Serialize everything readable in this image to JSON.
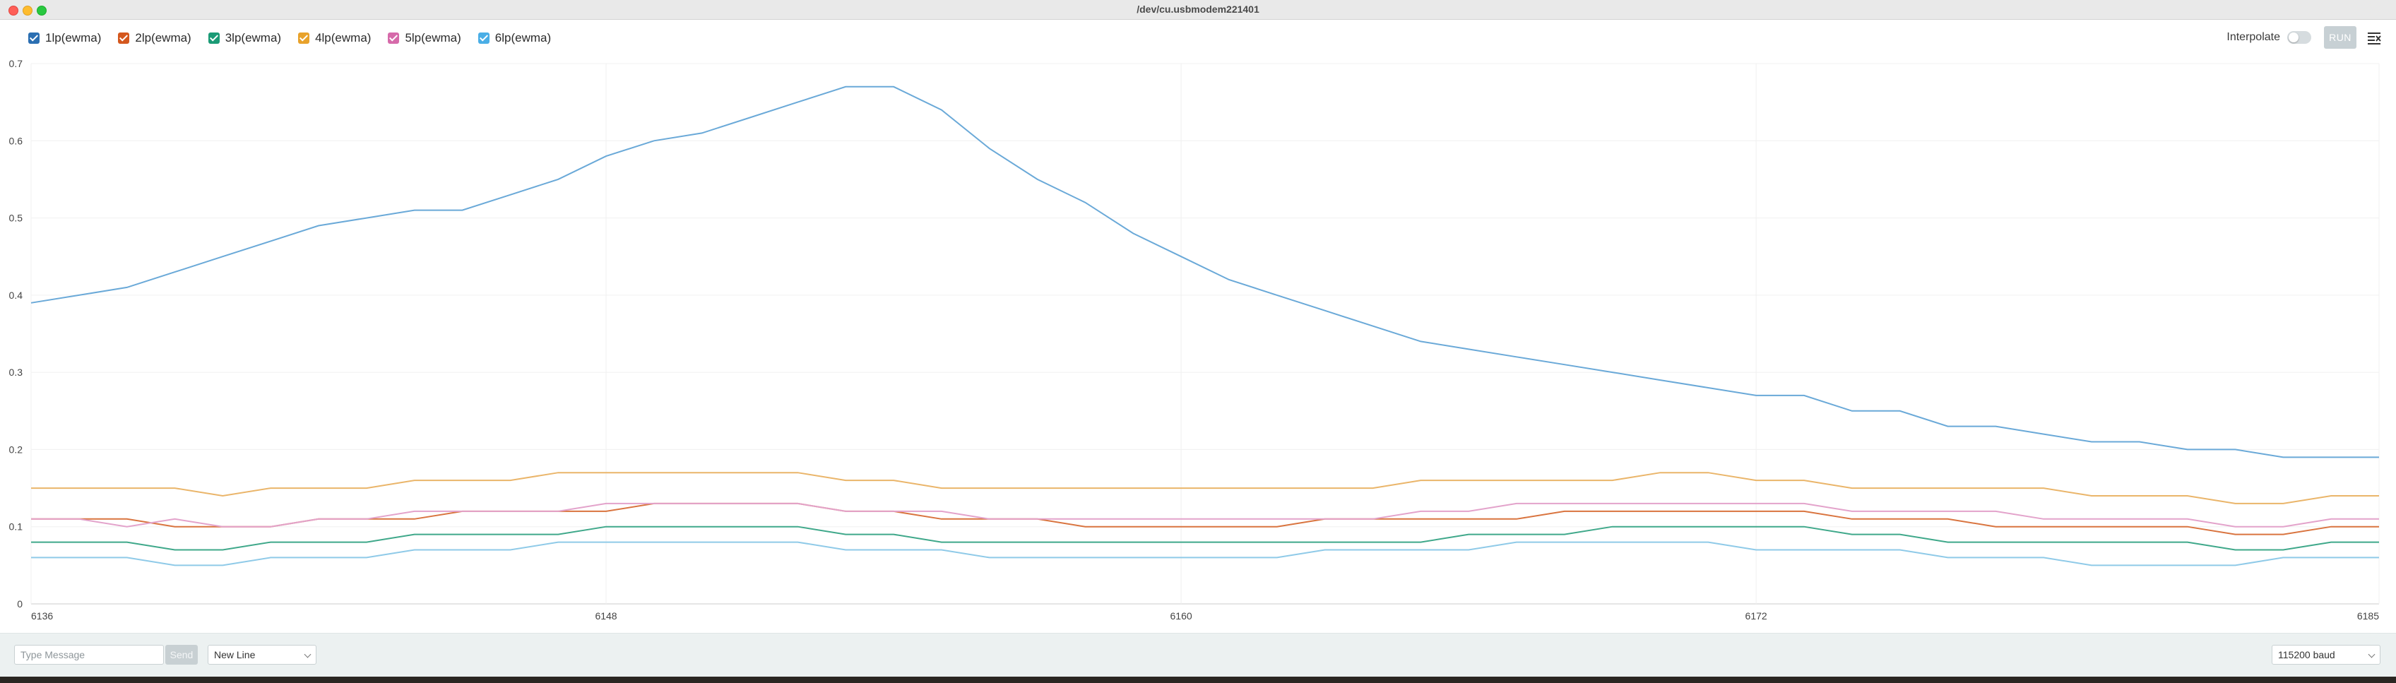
{
  "window": {
    "title": "/dev/cu.usbmodem221401"
  },
  "legend": {
    "items": [
      {
        "label": "1lp(ewma)",
        "color": "#2b6fb2"
      },
      {
        "label": "2lp(ewma)",
        "color": "#d4581e"
      },
      {
        "label": "3lp(ewma)",
        "color": "#1b9b76"
      },
      {
        "label": "4lp(ewma)",
        "color": "#e8a22b"
      },
      {
        "label": "5lp(ewma)",
        "color": "#d66aaa"
      },
      {
        "label": "6lp(ewma)",
        "color": "#4aaee6"
      }
    ]
  },
  "toolbar": {
    "interpolate_label": "Interpolate",
    "interpolate_on": false,
    "run_label": "RUN",
    "clear_icon": "clear-output-icon"
  },
  "chart_data": {
    "type": "line",
    "x": [
      6136,
      6137,
      6138,
      6139,
      6140,
      6141,
      6142,
      6143,
      6144,
      6145,
      6146,
      6147,
      6148,
      6149,
      6150,
      6151,
      6152,
      6153,
      6154,
      6155,
      6156,
      6157,
      6158,
      6159,
      6160,
      6161,
      6162,
      6163,
      6164,
      6165,
      6166,
      6167,
      6168,
      6169,
      6170,
      6171,
      6172,
      6173,
      6174,
      6175,
      6176,
      6177,
      6178,
      6179,
      6180,
      6181,
      6182,
      6183,
      6184,
      6185
    ],
    "xticks": [
      6136,
      6148,
      6160,
      6172,
      6185
    ],
    "yticks": [
      0,
      0.1,
      0.2,
      0.3,
      0.4,
      0.5,
      0.6,
      0.7
    ],
    "xlim": [
      6136,
      6185
    ],
    "ylim": [
      0,
      0.7
    ],
    "grid": true,
    "series": [
      {
        "name": "1lp(ewma)",
        "color": "#6aa9d8",
        "values": [
          0.39,
          0.4,
          0.41,
          0.43,
          0.45,
          0.47,
          0.49,
          0.5,
          0.51,
          0.51,
          0.53,
          0.55,
          0.58,
          0.6,
          0.61,
          0.63,
          0.65,
          0.67,
          0.67,
          0.64,
          0.59,
          0.55,
          0.52,
          0.48,
          0.45,
          0.42,
          0.4,
          0.38,
          0.36,
          0.34,
          0.33,
          0.32,
          0.31,
          0.3,
          0.29,
          0.28,
          0.27,
          0.27,
          0.25,
          0.25,
          0.23,
          0.23,
          0.22,
          0.21,
          0.21,
          0.2,
          0.2,
          0.19,
          0.19,
          0.19
        ]
      },
      {
        "name": "2lp(ewma)",
        "color": "#d9743f",
        "values": [
          0.11,
          0.11,
          0.11,
          0.1,
          0.1,
          0.1,
          0.11,
          0.11,
          0.11,
          0.12,
          0.12,
          0.12,
          0.12,
          0.13,
          0.13,
          0.13,
          0.13,
          0.12,
          0.12,
          0.11,
          0.11,
          0.11,
          0.1,
          0.1,
          0.1,
          0.1,
          0.1,
          0.11,
          0.11,
          0.11,
          0.11,
          0.11,
          0.12,
          0.12,
          0.12,
          0.12,
          0.12,
          0.12,
          0.11,
          0.11,
          0.11,
          0.1,
          0.1,
          0.1,
          0.1,
          0.1,
          0.09,
          0.09,
          0.1,
          0.1
        ]
      },
      {
        "name": "3lp(ewma)",
        "color": "#3fa88a",
        "values": [
          0.08,
          0.08,
          0.08,
          0.07,
          0.07,
          0.08,
          0.08,
          0.08,
          0.09,
          0.09,
          0.09,
          0.09,
          0.1,
          0.1,
          0.1,
          0.1,
          0.1,
          0.09,
          0.09,
          0.08,
          0.08,
          0.08,
          0.08,
          0.08,
          0.08,
          0.08,
          0.08,
          0.08,
          0.08,
          0.08,
          0.09,
          0.09,
          0.09,
          0.1,
          0.1,
          0.1,
          0.1,
          0.1,
          0.09,
          0.09,
          0.08,
          0.08,
          0.08,
          0.08,
          0.08,
          0.08,
          0.07,
          0.07,
          0.08,
          0.08
        ]
      },
      {
        "name": "4lp(ewma)",
        "color": "#eab56a",
        "values": [
          0.15,
          0.15,
          0.15,
          0.15,
          0.14,
          0.15,
          0.15,
          0.15,
          0.16,
          0.16,
          0.16,
          0.17,
          0.17,
          0.17,
          0.17,
          0.17,
          0.17,
          0.16,
          0.16,
          0.15,
          0.15,
          0.15,
          0.15,
          0.15,
          0.15,
          0.15,
          0.15,
          0.15,
          0.15,
          0.16,
          0.16,
          0.16,
          0.16,
          0.16,
          0.17,
          0.17,
          0.16,
          0.16,
          0.15,
          0.15,
          0.15,
          0.15,
          0.15,
          0.14,
          0.14,
          0.14,
          0.13,
          0.13,
          0.14,
          0.14
        ]
      },
      {
        "name": "5lp(ewma)",
        "color": "#e3a3cb",
        "values": [
          0.11,
          0.11,
          0.1,
          0.11,
          0.1,
          0.1,
          0.11,
          0.11,
          0.12,
          0.12,
          0.12,
          0.12,
          0.13,
          0.13,
          0.13,
          0.13,
          0.13,
          0.12,
          0.12,
          0.12,
          0.11,
          0.11,
          0.11,
          0.11,
          0.11,
          0.11,
          0.11,
          0.11,
          0.11,
          0.12,
          0.12,
          0.13,
          0.13,
          0.13,
          0.13,
          0.13,
          0.13,
          0.13,
          0.12,
          0.12,
          0.12,
          0.12,
          0.11,
          0.11,
          0.11,
          0.11,
          0.1,
          0.1,
          0.11,
          0.11
        ]
      },
      {
        "name": "6lp(ewma)",
        "color": "#8fcae8",
        "values": [
          0.06,
          0.06,
          0.06,
          0.05,
          0.05,
          0.06,
          0.06,
          0.06,
          0.07,
          0.07,
          0.07,
          0.08,
          0.08,
          0.08,
          0.08,
          0.08,
          0.08,
          0.07,
          0.07,
          0.07,
          0.06,
          0.06,
          0.06,
          0.06,
          0.06,
          0.06,
          0.06,
          0.07,
          0.07,
          0.07,
          0.07,
          0.08,
          0.08,
          0.08,
          0.08,
          0.08,
          0.07,
          0.07,
          0.07,
          0.07,
          0.06,
          0.06,
          0.06,
          0.05,
          0.05,
          0.05,
          0.05,
          0.06,
          0.06,
          0.06
        ]
      }
    ]
  },
  "footer": {
    "message_placeholder": "Type Message",
    "send_label": "Send",
    "line_ending": "New Line",
    "baud": "115200 baud"
  }
}
